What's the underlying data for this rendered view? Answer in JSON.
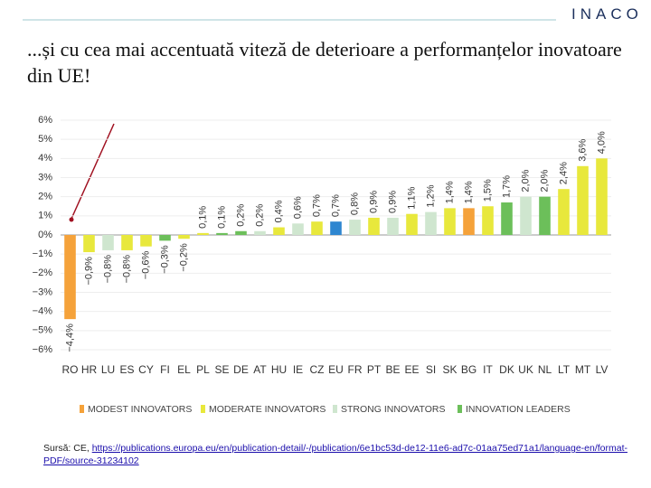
{
  "logo": "INACO",
  "title": "...și cu cea mai accentuată viteză de deterioare a performanțelor inovatoare din UE!",
  "source": {
    "prefix": "Sursă: CE,",
    "url": "https://publications.europa.eu/en/publication-detail/-/publication/6e1bc53d-de12-11e6-ad7c-01aa75ed71a1/language-en/format-PDF/source-31234102"
  },
  "chart_data": {
    "type": "bar",
    "categories": [
      "RO",
      "HR",
      "LU",
      "ES",
      "CY",
      "FI",
      "EL",
      "PL",
      "SE",
      "DE",
      "AT",
      "HU",
      "IE",
      "CZ",
      "EU",
      "FR",
      "PT",
      "BE",
      "EE",
      "SI",
      "SK",
      "BG",
      "IT",
      "DK",
      "UK",
      "NL",
      "LT",
      "MT",
      "LV"
    ],
    "values": [
      -4.4,
      -0.9,
      -0.8,
      -0.8,
      -0.6,
      -0.3,
      -0.2,
      0.1,
      0.1,
      0.2,
      0.2,
      0.4,
      0.6,
      0.7,
      0.7,
      0.8,
      0.9,
      0.9,
      1.1,
      1.2,
      1.4,
      1.4,
      1.5,
      1.7,
      2.0,
      2.0,
      2.4,
      3.6,
      4.0
    ],
    "value_labels": [
      "−4,4%",
      "−0,9%",
      "−0,8%",
      "−0,8%",
      "−0,6%",
      "−0,3%",
      "−0,2%",
      "0,1%",
      "0,1%",
      "0,2%",
      "0,2%",
      "0,4%",
      "0,6%",
      "0,7%",
      "0,7%",
      "0,8%",
      "0,9%",
      "0,9%",
      "1,1%",
      "1,2%",
      "1,4%",
      "1,4%",
      "1,5%",
      "1,7%",
      "2,0%",
      "2,0%",
      "2,4%",
      "3,6%",
      "4,0%"
    ],
    "colors": [
      "#f5a23a",
      "#e8e83c",
      "#cfe6cf",
      "#e8e83c",
      "#e8e83c",
      "#6cbf5a",
      "#e8e83c",
      "#e8e83c",
      "#6cbf5a",
      "#6cbf5a",
      "#cfe6cf",
      "#e8e83c",
      "#cfe6cf",
      "#e8e83c",
      "#2e86d0",
      "#cfe6cf",
      "#e8e83c",
      "#cfe6cf",
      "#e8e83c",
      "#cfe6cf",
      "#e8e83c",
      "#f5a23a",
      "#e8e83c",
      "#6cbf5a",
      "#cfe6cf",
      "#6cbf5a",
      "#e8e83c",
      "#e8e83c",
      "#e8e83c"
    ],
    "ylim": [
      -6,
      6
    ],
    "yticks": [
      {
        "value": -6,
        "label": "−6%"
      },
      {
        "value": -5,
        "label": "−5%"
      },
      {
        "value": -4,
        "label": "−4%"
      },
      {
        "value": -3,
        "label": "−3%"
      },
      {
        "value": -2,
        "label": "−2%"
      },
      {
        "value": -1,
        "label": "−1%"
      },
      {
        "value": 0,
        "label": "0%"
      },
      {
        "value": 1,
        "label": "1%"
      },
      {
        "value": 2,
        "label": "2%"
      },
      {
        "value": 3,
        "label": "3%"
      },
      {
        "value": 4,
        "label": "4%"
      },
      {
        "value": 5,
        "label": "5%"
      },
      {
        "value": 6,
        "label": "6%"
      }
    ],
    "grid": true,
    "legend": [
      {
        "name": "MODEST INNOVATORS",
        "color": "#f5a23a"
      },
      {
        "name": "MODERATE INNOVATORS",
        "color": "#e8e83c"
      },
      {
        "name": "STRONG INNOVATORS",
        "color": "#cfe6cf"
      },
      {
        "name": "INNOVATION LEADERS",
        "color": "#6cbf5a"
      }
    ]
  }
}
